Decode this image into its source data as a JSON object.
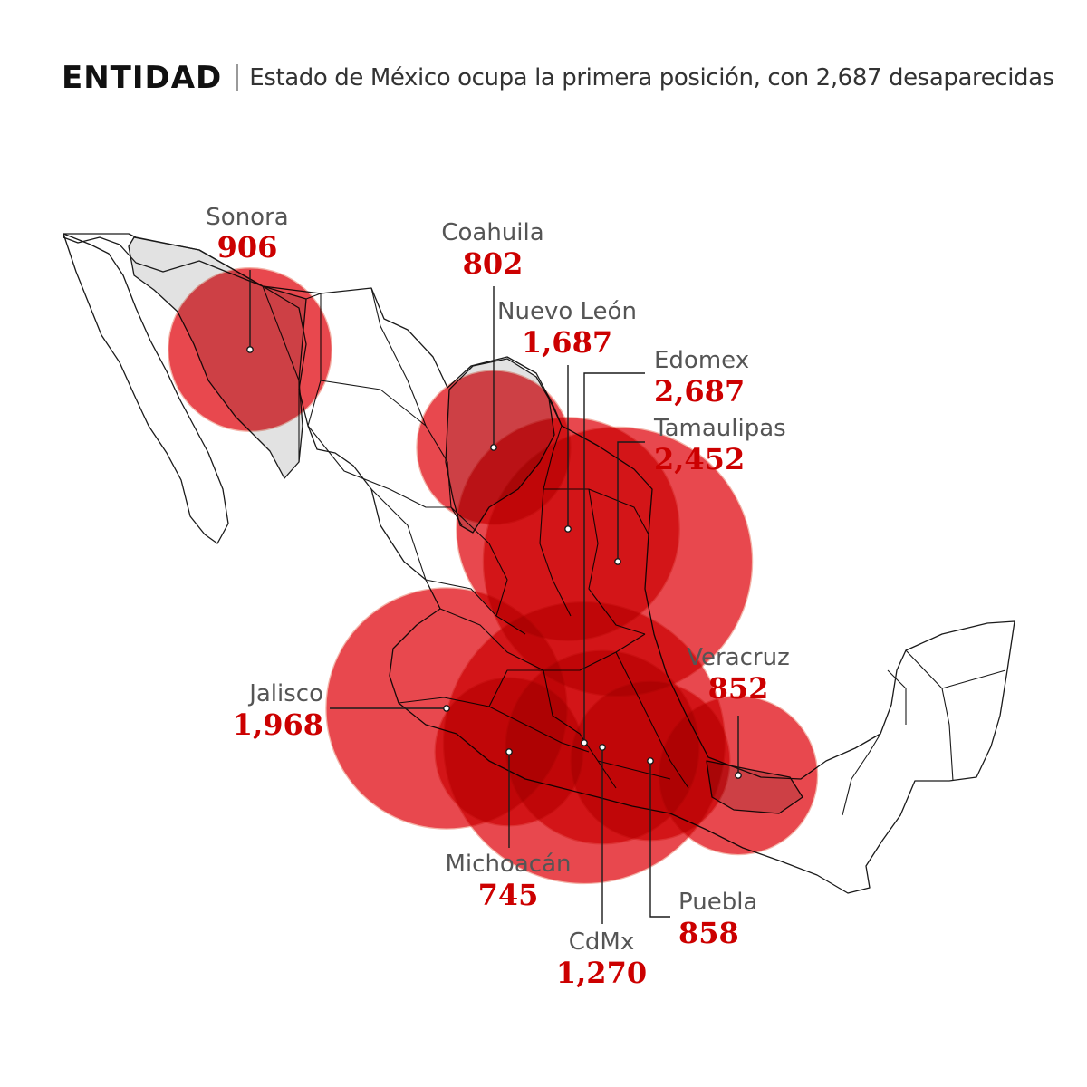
{
  "header": {
    "title": "ENTIDAD",
    "subtitle": "Estado de México ocupa la primera posición, con 2,687 desaparecidas"
  },
  "colors": {
    "bubble": "#e2141c",
    "bubble_outline": "#f3b3a8",
    "highlight_state": "#e2e2e2",
    "map_outline": "#1a1a1a",
    "label_name": "#555555",
    "label_value": "#cc0000"
  },
  "states": [
    {
      "name": "Sonora",
      "value_label": "906",
      "value": 906
    },
    {
      "name": "Coahuila",
      "value_label": "802",
      "value": 802
    },
    {
      "name": "Nuevo León",
      "value_label": "1,687",
      "value": 1687
    },
    {
      "name": "Edomex",
      "value_label": "2,687",
      "value": 2687
    },
    {
      "name": "Tamaulipas",
      "value_label": "2,452",
      "value": 2452
    },
    {
      "name": "Veracruz",
      "value_label": "852",
      "value": 852
    },
    {
      "name": "Jalisco",
      "value_label": "1,968",
      "value": 1968
    },
    {
      "name": "Michoacán",
      "value_label": "745",
      "value": 745
    },
    {
      "name": "CdMx",
      "value_label": "1,270",
      "value": 1270
    },
    {
      "name": "Puebla",
      "value_label": "858",
      "value": 858
    }
  ]
}
